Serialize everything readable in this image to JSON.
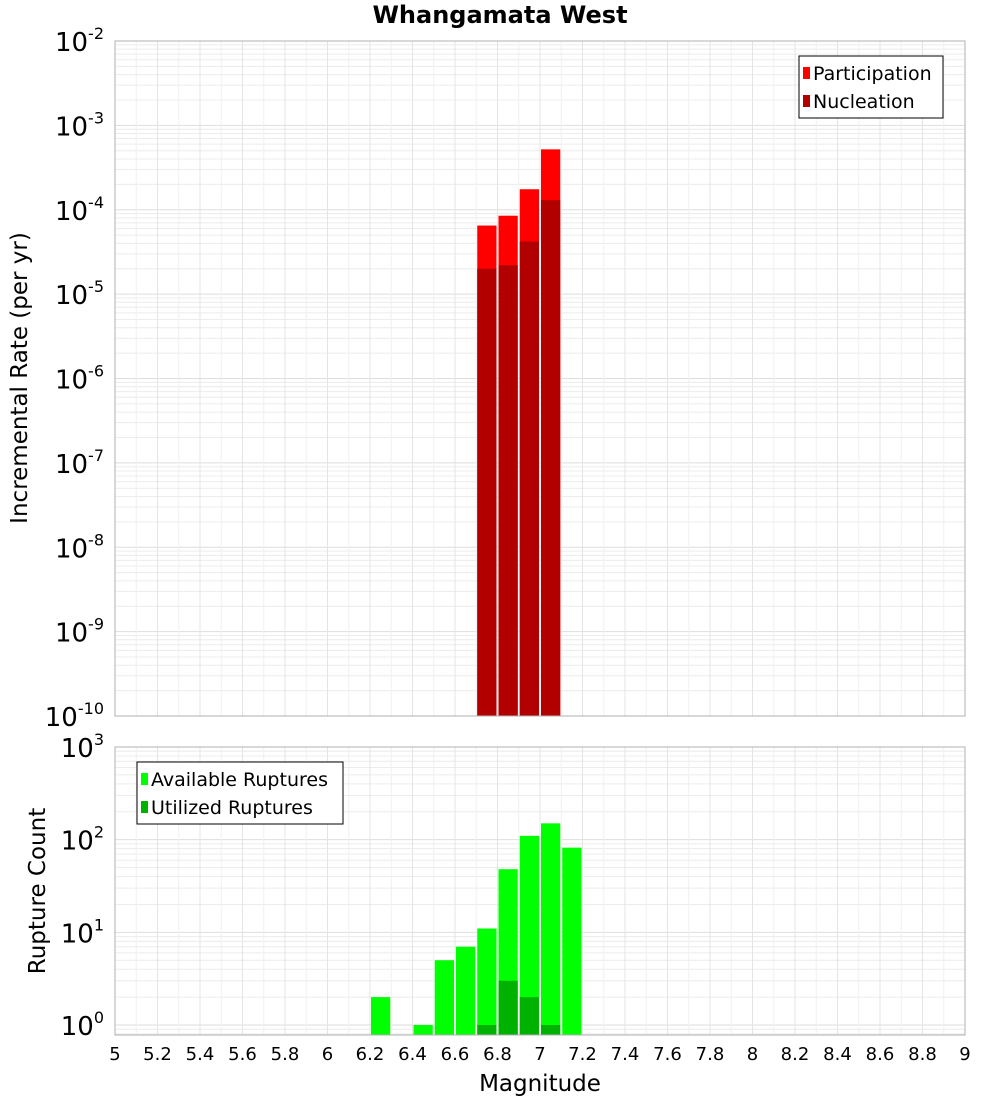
{
  "chart_data": {
    "title": "Whangamata West",
    "x_axis": {
      "label": "Magnitude",
      "range": [
        5,
        9
      ],
      "ticks": [
        "5",
        "5.2",
        "5.4",
        "5.6",
        "5.8",
        "6",
        "6.2",
        "6.4",
        "6.6",
        "6.8",
        "7",
        "7.2",
        "7.4",
        "7.6",
        "7.8",
        "8",
        "8.2",
        "8.4",
        "8.6",
        "8.8",
        "9"
      ]
    },
    "panels": [
      {
        "type": "bar",
        "ylabel": "Incremental Rate (per yr)",
        "y_scale": "log",
        "ylim": [
          1e-10,
          0.01
        ],
        "y_tick_exponents": [
          -10,
          -9,
          -8,
          -7,
          -6,
          -5,
          -4,
          -3,
          -2
        ],
        "grid": true,
        "legend_position": "top-right",
        "series": [
          {
            "name": "Participation",
            "color": "#ff0000",
            "points": [
              {
                "x": 6.75,
                "y": 6.5e-05
              },
              {
                "x": 6.85,
                "y": 8.5e-05
              },
              {
                "x": 6.95,
                "y": 0.000175
              },
              {
                "x": 7.05,
                "y": 0.00052
              }
            ]
          },
          {
            "name": "Nucleation",
            "color": "#b20000",
            "points": [
              {
                "x": 6.75,
                "y": 2e-05
              },
              {
                "x": 6.85,
                "y": 2.2e-05
              },
              {
                "x": 6.95,
                "y": 4.2e-05
              },
              {
                "x": 7.05,
                "y": 0.00013
              }
            ]
          }
        ]
      },
      {
        "type": "bar",
        "ylabel": "Rupture Count",
        "y_scale": "log",
        "ylim": [
          0.78,
          1000
        ],
        "y_tick_exponents": [
          0,
          1,
          2,
          3
        ],
        "grid": true,
        "legend_position": "top-left",
        "series": [
          {
            "name": "Available Ruptures",
            "color": "#00ff00",
            "points": [
              {
                "x": 6.25,
                "y": 2
              },
              {
                "x": 6.45,
                "y": 1
              },
              {
                "x": 6.55,
                "y": 5
              },
              {
                "x": 6.65,
                "y": 7
              },
              {
                "x": 6.75,
                "y": 11
              },
              {
                "x": 6.85,
                "y": 48
              },
              {
                "x": 6.95,
                "y": 110
              },
              {
                "x": 7.05,
                "y": 150
              },
              {
                "x": 7.15,
                "y": 82
              }
            ]
          },
          {
            "name": "Utilized Ruptures",
            "color": "#00b200",
            "points": [
              {
                "x": 6.75,
                "y": 1
              },
              {
                "x": 6.85,
                "y": 3
              },
              {
                "x": 6.95,
                "y": 2
              },
              {
                "x": 7.05,
                "y": 1
              }
            ]
          }
        ]
      }
    ]
  }
}
